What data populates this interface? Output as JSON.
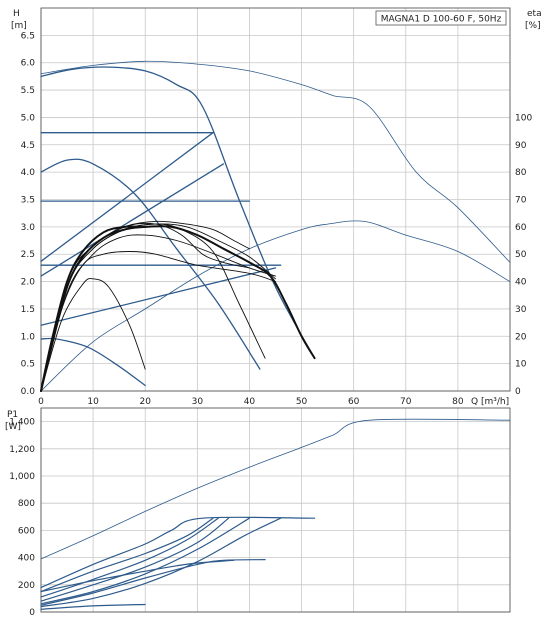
{
  "chart_data": [
    {
      "type": "line",
      "title": "MAGNA1 D 100-60 F, 50Hz",
      "ylabel": "H",
      "yunit": "[m]",
      "y2label": "eta",
      "y2unit": "[%]",
      "xlabel": "Q [m³/h]",
      "xlim": [
        0,
        90
      ],
      "ylim": [
        0,
        7
      ],
      "y2lim": [
        0,
        140
      ],
      "xticks": [
        0,
        10,
        20,
        30,
        40,
        50,
        60,
        70,
        80
      ],
      "yticks": [
        0,
        0.5,
        1.0,
        1.5,
        2.0,
        2.5,
        3.0,
        3.5,
        4.0,
        4.5,
        5.0,
        5.5,
        6.0,
        6.5
      ],
      "y2ticks": [
        0,
        10,
        20,
        30,
        40,
        50,
        60,
        70,
        80,
        90,
        100
      ],
      "xtick_labels": [
        "0",
        "10",
        "20",
        "30",
        "40",
        "50",
        "60",
        "70",
        "80"
      ],
      "ytick_labels": [
        "0.0",
        "0.5",
        "1.0",
        "1.5",
        "2.0",
        "2.5",
        "3.0",
        "3.5",
        "4.0",
        "4.5",
        "5.0",
        "5.5",
        "6.0",
        "6.5"
      ],
      "y2tick_labels": [
        "0",
        "10",
        "20",
        "30",
        "40",
        "50",
        "60",
        "70",
        "80",
        "90",
        "100"
      ],
      "grid": true,
      "colors": {
        "blue": "#2e5b8c",
        "black": "#111111"
      },
      "series": [
        {
          "color": "blue",
          "w": 1.3,
          "axis": "y",
          "points": [
            [
              0,
              5.75
            ],
            [
              6,
              5.88
            ],
            [
              13,
              5.92
            ],
            [
              20,
              5.85
            ],
            [
              26,
              5.6
            ],
            [
              31,
              5.2
            ],
            [
              38,
              3.5
            ],
            [
              45,
              1.9
            ],
            [
              52.5,
              0.6
            ]
          ]
        },
        {
          "color": "blue",
          "w": 0.8,
          "axis": "y2",
          "points": [
            [
              0,
              116
            ],
            [
              10,
              119
            ],
            [
              20,
              120.5
            ],
            [
              30,
              119.5
            ],
            [
              40,
              117
            ],
            [
              50,
              112
            ],
            [
              56,
              108
            ],
            [
              63,
              104
            ],
            [
              72,
              80
            ],
            [
              80,
              67
            ],
            [
              90,
              47
            ]
          ]
        },
        {
          "color": "blue",
          "w": 0.8,
          "axis": "y2",
          "points": [
            [
              0,
              0
            ],
            [
              10,
              18
            ],
            [
              20,
              30
            ],
            [
              30,
              42
            ],
            [
              40,
              52
            ],
            [
              50,
              59
            ],
            [
              55,
              61
            ],
            [
              62,
              62
            ],
            [
              70,
              57
            ],
            [
              80,
              51
            ],
            [
              90,
              40
            ]
          ]
        },
        {
          "color": "blue",
          "w": 1.3,
          "axis": "y",
          "points": [
            [
              0,
              4.72
            ],
            [
              33,
              4.72
            ]
          ]
        },
        {
          "color": "blue",
          "w": 1.3,
          "axis": "y",
          "points": [
            [
              0,
              3.47
            ],
            [
              40,
              3.47
            ]
          ]
        },
        {
          "color": "blue",
          "w": 1.3,
          "axis": "y",
          "points": [
            [
              0,
              2.3
            ],
            [
              46,
              2.3
            ]
          ]
        },
        {
          "color": "blue",
          "w": 1.3,
          "axis": "y",
          "points": [
            [
              0,
              2.37
            ],
            [
              33,
              4.72
            ]
          ]
        },
        {
          "color": "blue",
          "w": 1.3,
          "axis": "y",
          "points": [
            [
              0,
              2.1
            ],
            [
              35,
              4.15
            ]
          ]
        },
        {
          "color": "blue",
          "w": 1.3,
          "axis": "y",
          "points": [
            [
              0,
              1.2
            ],
            [
              45,
              2.25
            ]
          ]
        },
        {
          "color": "blue",
          "w": 1.3,
          "axis": "y",
          "points": [
            [
              0,
              0.95
            ],
            [
              3,
              0.95
            ],
            [
              9,
              0.8
            ],
            [
              15,
              0.45
            ],
            [
              20,
              0.1
            ]
          ]
        },
        {
          "color": "blue",
          "w": 1.3,
          "axis": "y",
          "points": [
            [
              0,
              4.0
            ],
            [
              5,
              4.22
            ],
            [
              10,
              4.15
            ],
            [
              18,
              3.6
            ],
            [
              26,
              2.6
            ],
            [
              34,
              1.6
            ],
            [
              42,
              0.4
            ]
          ]
        },
        {
          "color": "black",
          "w": 0.9,
          "axis": "y",
          "points": [
            [
              0,
              0
            ],
            [
              4,
              1.3
            ],
            [
              8,
              1.95
            ],
            [
              10,
              2.05
            ],
            [
              13,
              1.9
            ],
            [
              17,
              1.2
            ],
            [
              20,
              0.4
            ]
          ]
        },
        {
          "color": "black",
          "w": 0.9,
          "axis": "y",
          "points": [
            [
              0,
              0
            ],
            [
              4,
              1.5
            ],
            [
              8,
              2.3
            ],
            [
              12,
              2.5
            ],
            [
              17,
              2.55
            ],
            [
              22,
              2.5
            ],
            [
              30,
              2.3
            ],
            [
              40,
              2.15
            ],
            [
              45,
              2.0
            ]
          ]
        },
        {
          "color": "black",
          "w": 0.9,
          "axis": "y",
          "points": [
            [
              0,
              0
            ],
            [
              5,
              1.8
            ],
            [
              10,
              2.5
            ],
            [
              15,
              2.8
            ],
            [
              20,
              2.85
            ],
            [
              26,
              2.75
            ],
            [
              32,
              2.55
            ],
            [
              40,
              2.25
            ],
            [
              45,
              2.1
            ]
          ]
        },
        {
          "color": "black",
          "w": 0.9,
          "axis": "y",
          "points": [
            [
              0,
              0
            ],
            [
              5,
              1.9
            ],
            [
              10,
              2.6
            ],
            [
              16,
              2.95
            ],
            [
              22,
              3.05
            ],
            [
              28,
              3.0
            ],
            [
              34,
              2.75
            ],
            [
              40,
              2.45
            ],
            [
              45,
              2.05
            ]
          ]
        },
        {
          "color": "black",
          "w": 0.9,
          "axis": "y",
          "points": [
            [
              0,
              0
            ],
            [
              5,
              1.9
            ],
            [
              10,
              2.6
            ],
            [
              16,
              2.95
            ],
            [
              22,
              3.05
            ],
            [
              27,
              2.95
            ],
            [
              33,
              2.55
            ],
            [
              38,
              1.6
            ],
            [
              43,
              0.6
            ]
          ]
        },
        {
          "color": "black",
          "w": 0.9,
          "axis": "y",
          "points": [
            [
              0,
              0
            ],
            [
              5,
              2.0
            ],
            [
              10,
              2.65
            ],
            [
              16,
              3.0
            ],
            [
              22,
              3.1
            ],
            [
              28,
              3.05
            ],
            [
              33,
              2.95
            ],
            [
              37,
              2.75
            ],
            [
              40,
              2.6
            ]
          ]
        },
        {
          "color": "black",
          "w": 0.9,
          "axis": "y",
          "points": [
            [
              0,
              0
            ],
            [
              5,
              2.0
            ],
            [
              10,
              2.65
            ],
            [
              16,
              3.0
            ],
            [
              22,
              3.05
            ],
            [
              27,
              2.85
            ],
            [
              31,
              2.5
            ],
            [
              35,
              2.35
            ],
            [
              40,
              2.25
            ]
          ]
        },
        {
          "color": "black",
          "w": 2.0,
          "axis": "y",
          "points": [
            [
              0,
              0
            ],
            [
              2,
              0.8
            ],
            [
              5,
              1.9
            ],
            [
              8,
              2.45
            ],
            [
              12,
              2.8
            ],
            [
              16,
              2.95
            ],
            [
              20,
              3.0
            ],
            [
              25,
              3.0
            ],
            [
              30,
              2.85
            ],
            [
              35,
              2.6
            ],
            [
              40,
              2.35
            ],
            [
              44,
              2.1
            ],
            [
              47,
              1.6
            ],
            [
              50,
              1.0
            ],
            [
              52.5,
              0.6
            ]
          ]
        },
        {
          "color": "black",
          "w": 2.0,
          "axis": "y",
          "points": [
            [
              0,
              0
            ],
            [
              2,
              0.9
            ],
            [
              5,
              2.0
            ],
            [
              8,
              2.55
            ],
            [
              12,
              2.9
            ],
            [
              16,
              3.0
            ],
            [
              20,
              3.0
            ]
          ]
        }
      ]
    },
    {
      "type": "line",
      "ylabel": "P1",
      "yunit": "[W]",
      "xlim": [
        0,
        90
      ],
      "ylim": [
        0,
        1500
      ],
      "xticks": [
        0,
        10,
        20,
        30,
        40,
        50,
        60,
        70,
        80
      ],
      "yticks": [
        0,
        200,
        400,
        600,
        800,
        1000,
        1200,
        1400
      ],
      "ytick_labels": [
        "0",
        "200",
        "400",
        "600",
        "800",
        "1,000",
        "1,200",
        "1,400"
      ],
      "grid": true,
      "colors": {
        "blue": "#2e5b8c"
      },
      "series": [
        {
          "color": "blue",
          "w": 0.8,
          "points": [
            [
              0,
              390
            ],
            [
              10,
              560
            ],
            [
              20,
              740
            ],
            [
              30,
              910
            ],
            [
              40,
              1065
            ],
            [
              50,
              1210
            ],
            [
              56,
              1300
            ],
            [
              63,
              1410
            ],
            [
              90,
              1410
            ]
          ]
        },
        {
          "color": "blue",
          "w": 1.2,
          "points": [
            [
              0,
              180
            ],
            [
              10,
              350
            ],
            [
              20,
              500
            ],
            [
              25,
              600
            ],
            [
              31,
              690
            ],
            [
              52.5,
              690
            ]
          ]
        },
        {
          "color": "blue",
          "w": 1.2,
          "points": [
            [
              0,
              150
            ],
            [
              10,
              300
            ],
            [
              20,
              430
            ],
            [
              28,
              560
            ],
            [
              33,
              690
            ]
          ]
        },
        {
          "color": "blue",
          "w": 1.2,
          "points": [
            [
              0,
              110
            ],
            [
              10,
              240
            ],
            [
              20,
              380
            ],
            [
              28,
              530
            ],
            [
              34,
              690
            ]
          ]
        },
        {
          "color": "blue",
          "w": 1.2,
          "points": [
            [
              0,
              80
            ],
            [
              10,
              200
            ],
            [
              20,
              330
            ],
            [
              30,
              510
            ],
            [
              36,
              690
            ]
          ]
        },
        {
          "color": "blue",
          "w": 1.2,
          "points": [
            [
              0,
              60
            ],
            [
              10,
              150
            ],
            [
              20,
              280
            ],
            [
              30,
              460
            ],
            [
              40,
              690
            ]
          ]
        },
        {
          "color": "blue",
          "w": 1.2,
          "points": [
            [
              0,
              40
            ],
            [
              10,
              100
            ],
            [
              20,
              210
            ],
            [
              30,
              370
            ],
            [
              39,
              560
            ],
            [
              46,
              690
            ]
          ]
        },
        {
          "color": "blue",
          "w": 1.2,
          "points": [
            [
              0,
              50
            ],
            [
              10,
              140
            ],
            [
              20,
              250
            ],
            [
              30,
              350
            ],
            [
              35,
              380
            ],
            [
              43,
              385
            ]
          ]
        },
        {
          "color": "blue",
          "w": 1.2,
          "points": [
            [
              0,
              150
            ],
            [
              10,
              230
            ],
            [
              20,
              300
            ],
            [
              26,
              340
            ],
            [
              30,
              360
            ],
            [
              37,
              380
            ]
          ]
        },
        {
          "color": "blue",
          "w": 1.2,
          "points": [
            [
              0,
              20
            ],
            [
              10,
              45
            ],
            [
              20,
              55
            ]
          ]
        }
      ]
    }
  ]
}
